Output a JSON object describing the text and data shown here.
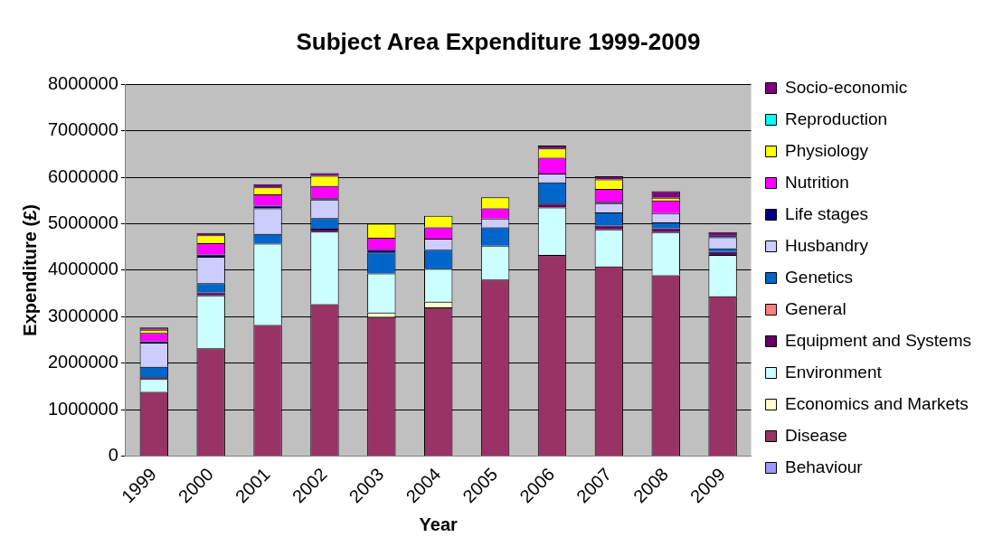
{
  "chart_data": {
    "type": "bar",
    "stacked": true,
    "title": "Subject Area Expenditure 1999-2009",
    "xlabel": "Year",
    "ylabel": "Expenditure (£)",
    "categories": [
      "1999",
      "2000",
      "2001",
      "2002",
      "2003",
      "2004",
      "2005",
      "2006",
      "2007",
      "2008",
      "2009"
    ],
    "ylim": [
      0,
      8000000
    ],
    "yticks": [
      0,
      1000000,
      2000000,
      3000000,
      4000000,
      5000000,
      6000000,
      7000000,
      8000000
    ],
    "grid": "y",
    "legend": "right",
    "series": [
      {
        "name": "Behaviour",
        "color": "#9999ff",
        "values": [
          0,
          0,
          0,
          0,
          0,
          0,
          0,
          0,
          0,
          0,
          0
        ]
      },
      {
        "name": "Disease",
        "color": "#993366",
        "values": [
          1380000,
          2320000,
          2820000,
          3270000,
          2990000,
          3200000,
          3800000,
          4330000,
          4080000,
          3890000,
          3440000
        ]
      },
      {
        "name": "Economics and Markets",
        "color": "#ffffcc",
        "values": [
          0,
          0,
          0,
          0,
          100000,
          120000,
          0,
          0,
          0,
          0,
          0
        ]
      },
      {
        "name": "Environment",
        "color": "#ccffff",
        "values": [
          280000,
          1140000,
          1750000,
          1560000,
          840000,
          710000,
          730000,
          1020000,
          800000,
          930000,
          890000
        ]
      },
      {
        "name": "Equipment and Systems",
        "color": "#660066",
        "values": [
          40000,
          60000,
          0,
          60000,
          0,
          0,
          0,
          80000,
          80000,
          80000,
          60000
        ]
      },
      {
        "name": "General",
        "color": "#ff8080",
        "values": [
          0,
          0,
          0,
          0,
          0,
          0,
          0,
          0,
          0,
          0,
          0
        ]
      },
      {
        "name": "Genetics",
        "color": "#0066cc",
        "values": [
          220000,
          200000,
          210000,
          230000,
          450000,
          410000,
          390000,
          460000,
          280000,
          130000,
          80000
        ]
      },
      {
        "name": "Husbandry",
        "color": "#ccccff",
        "values": [
          520000,
          570000,
          550000,
          400000,
          0,
          240000,
          190000,
          190000,
          200000,
          200000,
          240000
        ]
      },
      {
        "name": "Life stages",
        "color": "#000080",
        "values": [
          30000,
          50000,
          60000,
          30000,
          60000,
          0,
          0,
          0,
          30000,
          0,
          40000
        ]
      },
      {
        "name": "Nutrition",
        "color": "#ff00ff",
        "values": [
          180000,
          240000,
          240000,
          260000,
          260000,
          240000,
          220000,
          340000,
          280000,
          270000,
          0
        ]
      },
      {
        "name": "Physiology",
        "color": "#ffff00",
        "values": [
          70000,
          170000,
          150000,
          220000,
          300000,
          250000,
          240000,
          200000,
          200000,
          60000,
          0
        ]
      },
      {
        "name": "Reproduction",
        "color": "#00ffff",
        "values": [
          0,
          0,
          0,
          0,
          0,
          0,
          0,
          0,
          0,
          0,
          0
        ]
      },
      {
        "name": "Socio-economic",
        "color": "#800080",
        "values": [
          50000,
          50000,
          70000,
          60000,
          0,
          0,
          0,
          60000,
          70000,
          140000,
          70000
        ]
      }
    ]
  }
}
